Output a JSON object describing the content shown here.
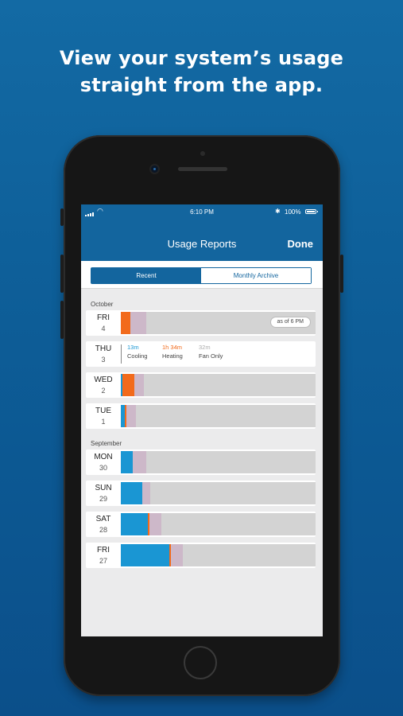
{
  "headline": {
    "line1": "View your system’s usage",
    "line2": "straight from the app."
  },
  "colors": {
    "cooling": "#1a96d3",
    "heating": "#f26a1b",
    "fan": "#cdb8c9",
    "idle": "#d3d3d3",
    "accent": "#13659e"
  },
  "status_bar": {
    "time": "6:10 PM",
    "battery": "100%",
    "bluetooth_icon": "bluetooth-icon",
    "wifi_icon": "wifi-icon"
  },
  "nav": {
    "title": "Usage Reports",
    "done": "Done"
  },
  "tabs": [
    {
      "label": "Recent",
      "selected": true
    },
    {
      "label": "Monthly Archive",
      "selected": false
    }
  ],
  "sections": [
    {
      "month": "October",
      "days": [
        {
          "name": "FRI",
          "date": "4",
          "badge": "as of 6 PM",
          "usage": [
            {
              "mode": "heating",
              "fraction": 0.05
            },
            {
              "mode": "fan",
              "fraction": 0.08
            }
          ]
        },
        {
          "name": "THU",
          "date": "3",
          "expanded": true,
          "breakdown": [
            {
              "value": "13m",
              "label": "Cooling",
              "mode": "cooling"
            },
            {
              "value": "1h 34m",
              "label": "Heating",
              "mode": "heating"
            },
            {
              "value": "32m",
              "label": "Fan Only",
              "mode": "fan_only"
            }
          ]
        },
        {
          "name": "WED",
          "date": "2",
          "usage": [
            {
              "mode": "cooling",
              "fraction": 0.01
            },
            {
              "mode": "heating",
              "fraction": 0.06
            },
            {
              "mode": "fan",
              "fraction": 0.05
            }
          ]
        },
        {
          "name": "TUE",
          "date": "1",
          "usage": [
            {
              "mode": "cooling",
              "fraction": 0.02
            },
            {
              "mode": "heating",
              "fraction": 0.01
            },
            {
              "mode": "fan",
              "fraction": 0.05
            }
          ]
        }
      ]
    },
    {
      "month": "September",
      "days": [
        {
          "name": "MON",
          "date": "30",
          "usage": [
            {
              "mode": "cooling",
              "fraction": 0.06
            },
            {
              "mode": "fan",
              "fraction": 0.07
            }
          ]
        },
        {
          "name": "SUN",
          "date": "29",
          "usage": [
            {
              "mode": "cooling",
              "fraction": 0.11
            },
            {
              "mode": "fan",
              "fraction": 0.04
            }
          ]
        },
        {
          "name": "SAT",
          "date": "28",
          "usage": [
            {
              "mode": "cooling",
              "fraction": 0.14
            },
            {
              "mode": "heating",
              "fraction": 0.01
            },
            {
              "mode": "fan",
              "fraction": 0.06
            }
          ]
        },
        {
          "name": "FRI",
          "date": "27",
          "usage": [
            {
              "mode": "cooling",
              "fraction": 0.25
            },
            {
              "mode": "heating",
              "fraction": 0.01
            },
            {
              "mode": "fan",
              "fraction": 0.06
            }
          ]
        }
      ]
    }
  ]
}
